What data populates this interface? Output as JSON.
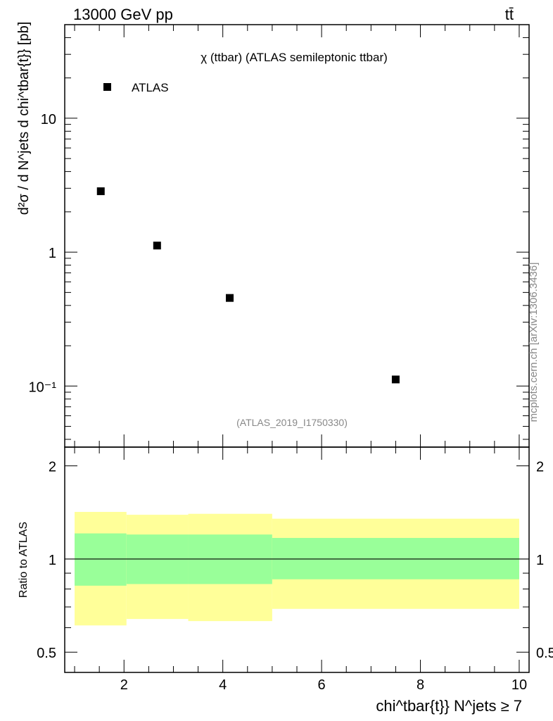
{
  "header": {
    "energy_label": "13000 GeV pp",
    "process_label": "tt̄"
  },
  "chart_data": [
    {
      "panel": "main",
      "type": "scatter",
      "title": "χ (ttbar) (ATLAS semileptonic ttbar)",
      "analysis_id": "(ATLAS_2019_I1750330)",
      "ylabel": "d²σ / d N^jets d chi^tbar{t}} [pb]",
      "yscale": "log",
      "ylim": [
        0.035,
        50
      ],
      "xlim": [
        0.8,
        10.2
      ],
      "y_ticks": [
        {
          "value": 0.1,
          "label": "10⁻¹"
        },
        {
          "value": 1,
          "label": "1"
        },
        {
          "value": 10,
          "label": "10"
        }
      ],
      "legend": "top-left",
      "series": [
        {
          "name": "ATLAS",
          "points": [
            {
              "x": 1.53,
              "y": 2.85
            },
            {
              "x": 2.67,
              "y": 1.12
            },
            {
              "x": 4.14,
              "y": 0.455
            },
            {
              "x": 7.5,
              "y": 0.112
            }
          ]
        }
      ]
    },
    {
      "panel": "ratio",
      "type": "area",
      "ylabel": "Ratio to ATLAS",
      "xlabel": "chi^tbar{t}} N^jets ≥ 7",
      "yscale": "log",
      "ylim": [
        0.43,
        2.3
      ],
      "xlim": [
        0.8,
        10.2
      ],
      "x_ticks": [
        2,
        4,
        6,
        8,
        10
      ],
      "y_ticks": [
        {
          "value": 0.5,
          "label": "0.5"
        },
        {
          "value": 1,
          "label": "1"
        },
        {
          "value": 2,
          "label": "2"
        }
      ],
      "reference_line": 1,
      "bins": [
        {
          "x_low": 1.0,
          "x_high": 2.05,
          "outer_low": 0.61,
          "outer_high": 1.42,
          "inner_low": 0.82,
          "inner_high": 1.21
        },
        {
          "x_low": 2.05,
          "x_high": 3.3,
          "outer_low": 0.64,
          "outer_high": 1.39,
          "inner_low": 0.83,
          "inner_high": 1.2
        },
        {
          "x_low": 3.3,
          "x_high": 5.0,
          "outer_low": 0.63,
          "outer_high": 1.4,
          "inner_low": 0.83,
          "inner_high": 1.2
        },
        {
          "x_low": 5.0,
          "x_high": 10.0,
          "outer_low": 0.69,
          "outer_high": 1.35,
          "inner_low": 0.86,
          "inner_high": 1.17
        }
      ],
      "band_colors": {
        "outer": "#ffff99",
        "inner": "#99ff99"
      }
    }
  ],
  "watermark": "mcplots.cern.ch [arXiv:1306.3436]"
}
